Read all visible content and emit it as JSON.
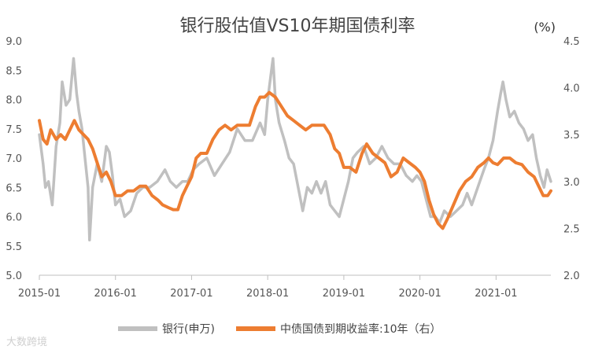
{
  "chart_data": {
    "type": "line",
    "title": "银行股估值VS10年期国债利率",
    "right_unit": "(%)",
    "left_axis": {
      "ylim": [
        5.0,
        9.0
      ],
      "ticks": [
        "5.0",
        "5.5",
        "6.0",
        "6.5",
        "7.0",
        "7.5",
        "8.0",
        "8.5",
        "9.0"
      ]
    },
    "right_axis": {
      "ylim": [
        2.0,
        4.5
      ],
      "ticks": [
        "2.0",
        "2.5",
        "3.0",
        "3.5",
        "4.0",
        "4.5"
      ]
    },
    "x_range": [
      2015.0,
      2021.72
    ],
    "x_ticks": [
      {
        "label": "2015-01",
        "x": 2015.0
      },
      {
        "label": "2016-01",
        "x": 2016.0
      },
      {
        "label": "2017-01",
        "x": 2017.0
      },
      {
        "label": "2018-01",
        "x": 2018.0
      },
      {
        "label": "2019-01",
        "x": 2019.0
      },
      {
        "label": "2020-01",
        "x": 2020.0
      },
      {
        "label": "2021-01",
        "x": 2021.0
      }
    ],
    "series": [
      {
        "name": "银行(申万)",
        "axis": "left",
        "color": "#c0c0c0",
        "points": [
          [
            2015.0,
            7.4
          ],
          [
            2015.05,
            6.9
          ],
          [
            2015.08,
            6.5
          ],
          [
            2015.12,
            6.6
          ],
          [
            2015.17,
            6.2
          ],
          [
            2015.22,
            7.2
          ],
          [
            2015.27,
            7.6
          ],
          [
            2015.3,
            8.3
          ],
          [
            2015.35,
            7.9
          ],
          [
            2015.4,
            8.0
          ],
          [
            2015.45,
            8.7
          ],
          [
            2015.49,
            8.1
          ],
          [
            2015.52,
            7.8
          ],
          [
            2015.56,
            7.5
          ],
          [
            2015.6,
            7.0
          ],
          [
            2015.64,
            6.5
          ],
          [
            2015.66,
            5.6
          ],
          [
            2015.7,
            6.5
          ],
          [
            2015.76,
            6.9
          ],
          [
            2015.82,
            6.6
          ],
          [
            2015.88,
            7.2
          ],
          [
            2015.92,
            7.1
          ],
          [
            2015.96,
            6.7
          ],
          [
            2016.0,
            6.2
          ],
          [
            2016.06,
            6.3
          ],
          [
            2016.12,
            6.0
          ],
          [
            2016.2,
            6.1
          ],
          [
            2016.28,
            6.4
          ],
          [
            2016.36,
            6.5
          ],
          [
            2016.45,
            6.5
          ],
          [
            2016.55,
            6.6
          ],
          [
            2016.65,
            6.8
          ],
          [
            2016.72,
            6.6
          ],
          [
            2016.8,
            6.5
          ],
          [
            2016.88,
            6.6
          ],
          [
            2016.95,
            6.6
          ],
          [
            2017.02,
            6.8
          ],
          [
            2017.1,
            6.9
          ],
          [
            2017.2,
            7.0
          ],
          [
            2017.3,
            6.7
          ],
          [
            2017.4,
            6.9
          ],
          [
            2017.5,
            7.1
          ],
          [
            2017.6,
            7.5
          ],
          [
            2017.7,
            7.3
          ],
          [
            2017.8,
            7.3
          ],
          [
            2017.9,
            7.6
          ],
          [
            2017.96,
            7.4
          ],
          [
            2018.0,
            8.0
          ],
          [
            2018.04,
            8.4
          ],
          [
            2018.07,
            8.7
          ],
          [
            2018.1,
            8.0
          ],
          [
            2018.15,
            7.6
          ],
          [
            2018.22,
            7.3
          ],
          [
            2018.28,
            7.0
          ],
          [
            2018.34,
            6.9
          ],
          [
            2018.4,
            6.5
          ],
          [
            2018.46,
            6.1
          ],
          [
            2018.52,
            6.5
          ],
          [
            2018.58,
            6.4
          ],
          [
            2018.64,
            6.6
          ],
          [
            2018.7,
            6.4
          ],
          [
            2018.76,
            6.6
          ],
          [
            2018.82,
            6.2
          ],
          [
            2018.88,
            6.1
          ],
          [
            2018.94,
            6.0
          ],
          [
            2019.0,
            6.3
          ],
          [
            2019.06,
            6.6
          ],
          [
            2019.12,
            7.0
          ],
          [
            2019.18,
            7.1
          ],
          [
            2019.26,
            7.2
          ],
          [
            2019.34,
            6.9
          ],
          [
            2019.42,
            7.0
          ],
          [
            2019.5,
            7.2
          ],
          [
            2019.58,
            7.0
          ],
          [
            2019.66,
            6.9
          ],
          [
            2019.74,
            6.9
          ],
          [
            2019.82,
            6.7
          ],
          [
            2019.9,
            6.6
          ],
          [
            2019.96,
            6.7
          ],
          [
            2020.02,
            6.6
          ],
          [
            2020.08,
            6.3
          ],
          [
            2020.14,
            6.0
          ],
          [
            2020.2,
            6.0
          ],
          [
            2020.26,
            5.9
          ],
          [
            2020.32,
            6.1
          ],
          [
            2020.4,
            6.0
          ],
          [
            2020.48,
            6.1
          ],
          [
            2020.56,
            6.2
          ],
          [
            2020.62,
            6.4
          ],
          [
            2020.68,
            6.2
          ],
          [
            2020.76,
            6.5
          ],
          [
            2020.84,
            6.8
          ],
          [
            2020.9,
            7.0
          ],
          [
            2020.96,
            7.3
          ],
          [
            2021.02,
            7.8
          ],
          [
            2021.06,
            8.1
          ],
          [
            2021.09,
            8.3
          ],
          [
            2021.13,
            8.0
          ],
          [
            2021.18,
            7.7
          ],
          [
            2021.24,
            7.8
          ],
          [
            2021.3,
            7.6
          ],
          [
            2021.36,
            7.5
          ],
          [
            2021.42,
            7.3
          ],
          [
            2021.48,
            7.4
          ],
          [
            2021.53,
            7.0
          ],
          [
            2021.58,
            6.7
          ],
          [
            2021.63,
            6.5
          ],
          [
            2021.67,
            6.8
          ],
          [
            2021.72,
            6.6
          ]
        ]
      },
      {
        "name": "中债国债到期收益率:10年（右）",
        "axis": "right",
        "color": "#ed7d31",
        "points": [
          [
            2015.0,
            3.65
          ],
          [
            2015.05,
            3.45
          ],
          [
            2015.1,
            3.4
          ],
          [
            2015.15,
            3.55
          ],
          [
            2015.22,
            3.45
          ],
          [
            2015.28,
            3.5
          ],
          [
            2015.34,
            3.45
          ],
          [
            2015.4,
            3.55
          ],
          [
            2015.46,
            3.65
          ],
          [
            2015.52,
            3.55
          ],
          [
            2015.58,
            3.5
          ],
          [
            2015.64,
            3.45
          ],
          [
            2015.7,
            3.35
          ],
          [
            2015.76,
            3.2
          ],
          [
            2015.82,
            3.05
          ],
          [
            2015.88,
            3.1
          ],
          [
            2015.94,
            3.0
          ],
          [
            2016.0,
            2.85
          ],
          [
            2016.08,
            2.85
          ],
          [
            2016.16,
            2.9
          ],
          [
            2016.24,
            2.9
          ],
          [
            2016.32,
            2.95
          ],
          [
            2016.4,
            2.95
          ],
          [
            2016.48,
            2.85
          ],
          [
            2016.56,
            2.8
          ],
          [
            2016.62,
            2.75
          ],
          [
            2016.7,
            2.72
          ],
          [
            2016.76,
            2.7
          ],
          [
            2016.82,
            2.7
          ],
          [
            2016.88,
            2.85
          ],
          [
            2016.94,
            2.95
          ],
          [
            2017.0,
            3.05
          ],
          [
            2017.06,
            3.25
          ],
          [
            2017.12,
            3.3
          ],
          [
            2017.2,
            3.3
          ],
          [
            2017.28,
            3.45
          ],
          [
            2017.36,
            3.55
          ],
          [
            2017.44,
            3.6
          ],
          [
            2017.52,
            3.55
          ],
          [
            2017.6,
            3.6
          ],
          [
            2017.68,
            3.6
          ],
          [
            2017.76,
            3.6
          ],
          [
            2017.84,
            3.8
          ],
          [
            2017.9,
            3.9
          ],
          [
            2017.96,
            3.9
          ],
          [
            2018.02,
            3.95
          ],
          [
            2018.1,
            3.9
          ],
          [
            2018.18,
            3.8
          ],
          [
            2018.26,
            3.7
          ],
          [
            2018.34,
            3.65
          ],
          [
            2018.42,
            3.6
          ],
          [
            2018.5,
            3.55
          ],
          [
            2018.58,
            3.6
          ],
          [
            2018.66,
            3.6
          ],
          [
            2018.74,
            3.6
          ],
          [
            2018.82,
            3.5
          ],
          [
            2018.88,
            3.35
          ],
          [
            2018.94,
            3.3
          ],
          [
            2019.0,
            3.15
          ],
          [
            2019.08,
            3.15
          ],
          [
            2019.16,
            3.1
          ],
          [
            2019.24,
            3.3
          ],
          [
            2019.3,
            3.4
          ],
          [
            2019.38,
            3.3
          ],
          [
            2019.46,
            3.25
          ],
          [
            2019.54,
            3.2
          ],
          [
            2019.62,
            3.05
          ],
          [
            2019.7,
            3.1
          ],
          [
            2019.78,
            3.25
          ],
          [
            2019.86,
            3.2
          ],
          [
            2019.94,
            3.15
          ],
          [
            2020.0,
            3.1
          ],
          [
            2020.06,
            3.0
          ],
          [
            2020.12,
            2.8
          ],
          [
            2020.18,
            2.65
          ],
          [
            2020.24,
            2.55
          ],
          [
            2020.3,
            2.5
          ],
          [
            2020.36,
            2.6
          ],
          [
            2020.44,
            2.75
          ],
          [
            2020.52,
            2.9
          ],
          [
            2020.6,
            3.0
          ],
          [
            2020.68,
            3.05
          ],
          [
            2020.76,
            3.15
          ],
          [
            2020.84,
            3.2
          ],
          [
            2020.9,
            3.25
          ],
          [
            2020.96,
            3.2
          ],
          [
            2021.02,
            3.18
          ],
          [
            2021.1,
            3.25
          ],
          [
            2021.18,
            3.25
          ],
          [
            2021.26,
            3.2
          ],
          [
            2021.34,
            3.18
          ],
          [
            2021.42,
            3.1
          ],
          [
            2021.5,
            3.05
          ],
          [
            2021.56,
            2.95
          ],
          [
            2021.62,
            2.85
          ],
          [
            2021.68,
            2.85
          ],
          [
            2021.72,
            2.9
          ]
        ]
      }
    ],
    "legend": [
      "银行(申万)",
      "中债国债到期收益率:10年（右）"
    ]
  },
  "watermark": "大数跨境"
}
